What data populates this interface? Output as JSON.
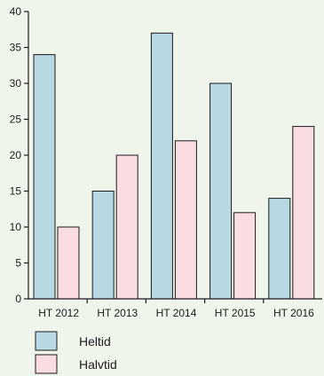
{
  "chart_data": {
    "type": "bar",
    "categories": [
      "HT 2012",
      "HT 2013",
      "HT 2014",
      "HT 2015",
      "HT 2016"
    ],
    "series": [
      {
        "name": "Heltid",
        "values": [
          34,
          15,
          37,
          30,
          14
        ],
        "color": "#b8d8e2"
      },
      {
        "name": "Halvtid",
        "values": [
          10,
          20,
          22,
          12,
          24
        ],
        "color": "#fadde1"
      }
    ],
    "title": "",
    "xlabel": "",
    "ylabel": "",
    "ylim": [
      0,
      40
    ],
    "yticks": [
      0,
      5,
      10,
      15,
      20,
      25,
      30,
      35,
      40
    ],
    "grid": false,
    "legend_position": "bottom-left"
  },
  "colors": {
    "background": "#f0f5eb",
    "axis": "#1a1a1a"
  }
}
